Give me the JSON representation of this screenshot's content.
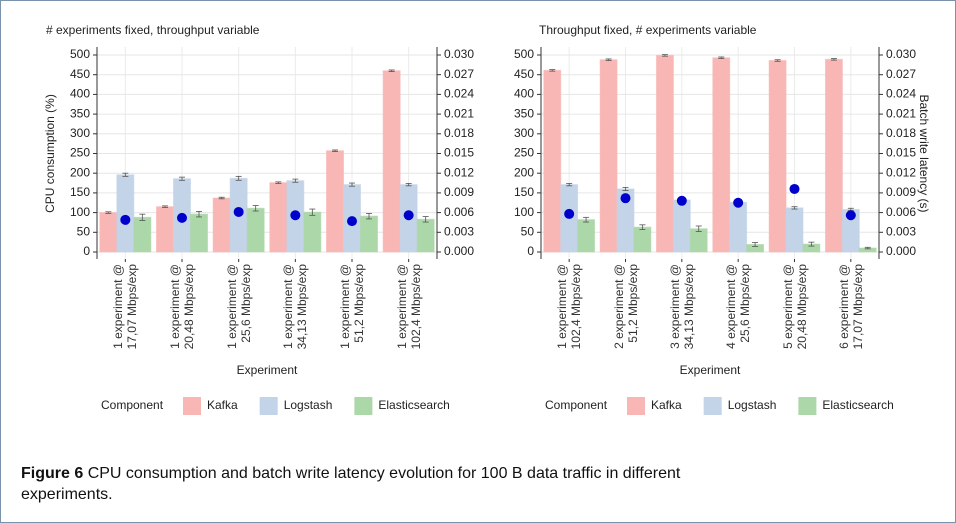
{
  "chart_data": [
    {
      "type": "bar",
      "title": "# experiments fixed, throughput variable",
      "categories": [
        "1 experiment @\n17,07 Mbps/exp",
        "1 experiment @\n20,48 Mbps/exp",
        "1 experiment @\n25,6 Mbps/exp",
        "1 experiment @\n34,13 Mbps/exp",
        "1 experiment @\n51,2 Mbps/exp",
        "1 experiment @\n102,4 Mbps/exp"
      ],
      "series": [
        {
          "name": "Kafka",
          "color": "#f8b6b4",
          "values": [
            100,
            115,
            137,
            176,
            257,
            460
          ],
          "errors": [
            2,
            2,
            2,
            2,
            2,
            2
          ]
        },
        {
          "name": "Logstash",
          "color": "#c3d3e8",
          "values": [
            196,
            186,
            187,
            181,
            171,
            171
          ],
          "errors": [
            4,
            4,
            5,
            4,
            4,
            3
          ]
        },
        {
          "name": "Elasticsearch",
          "color": "#acd7a9",
          "values": [
            88,
            96,
            111,
            101,
            91,
            83
          ],
          "errors": [
            8,
            7,
            7,
            8,
            7,
            7
          ]
        },
        {
          "color": "#0000cc",
          "axis": "y2",
          "values": [
            0.0049,
            0.0052,
            0.0061,
            0.0056,
            0.0047,
            0.0056
          ]
        }
      ],
      "xlabel": "Experiment",
      "ylabel": "CPU consumption (%)",
      "ylim": [
        0,
        500
      ],
      "yticks": [
        0,
        50,
        100,
        150,
        200,
        250,
        300,
        350,
        400,
        450,
        500
      ],
      "y2lim": [
        0,
        0.03
      ],
      "y2ticks": [
        {
          "value": 0,
          "label": "0.000"
        },
        0.003,
        0.006,
        0.009,
        0.012,
        0.015,
        0.018,
        0.021,
        0.024,
        0.027,
        {
          "value": 0.03,
          "label": "0.030"
        }
      ],
      "grid": true,
      "legend_title": "Component",
      "legend": "bottom"
    },
    {
      "type": "bar",
      "title": "Throughput fixed, # experiments variable",
      "categories": [
        "1 experiment @\n102,4 Mbps/exp",
        "2 experiment @\n51,2 Mbps/exp",
        "3 experiment @\n34,13 Mbps/exp",
        "4 experiment @\n25,6 Mbps/exp",
        "5 experiment @\n20,48 Mbps/exp",
        "6 experiment @\n17,07 Mbps/exp"
      ],
      "series": [
        {
          "name": "Kafka",
          "color": "#f8b6b4",
          "values": [
            461,
            488,
            499,
            493,
            486,
            489
          ],
          "errors": [
            2,
            2,
            2,
            2,
            2,
            2
          ]
        },
        {
          "name": "Logstash",
          "color": "#c3d3e8",
          "values": [
            171,
            160,
            132,
            126,
            112,
            108
          ],
          "errors": [
            3,
            4,
            3,
            3,
            3,
            3
          ]
        },
        {
          "name": "Elasticsearch",
          "color": "#acd7a9",
          "values": [
            82,
            63,
            59,
            19,
            20,
            10
          ],
          "errors": [
            6,
            6,
            7,
            5,
            5,
            2
          ]
        },
        {
          "color": "#0000cc",
          "axis": "y2",
          "values": [
            0.0058,
            0.0082,
            0.0078,
            0.0075,
            0.0096,
            0.0056
          ]
        }
      ],
      "xlabel": "Experiment",
      "y2label": "Batch write latency (s)",
      "ylim": [
        0,
        500
      ],
      "yticks": [
        0,
        50,
        100,
        150,
        200,
        250,
        300,
        350,
        400,
        450,
        500
      ],
      "y2lim": [
        0,
        0.03
      ],
      "y2ticks": [
        {
          "value": 0,
          "label": "0.000"
        },
        0.003,
        0.006,
        0.009,
        0.012,
        0.015,
        0.018,
        0.021,
        0.024,
        0.027,
        {
          "value": 0.03,
          "label": "0.030"
        }
      ],
      "grid": true,
      "legend_title": "Component",
      "legend": "bottom"
    }
  ],
  "caption": {
    "label": "Figure 6",
    "text": "CPU consumption and batch write latency evolution for 100 B data traffic in different experiments."
  }
}
